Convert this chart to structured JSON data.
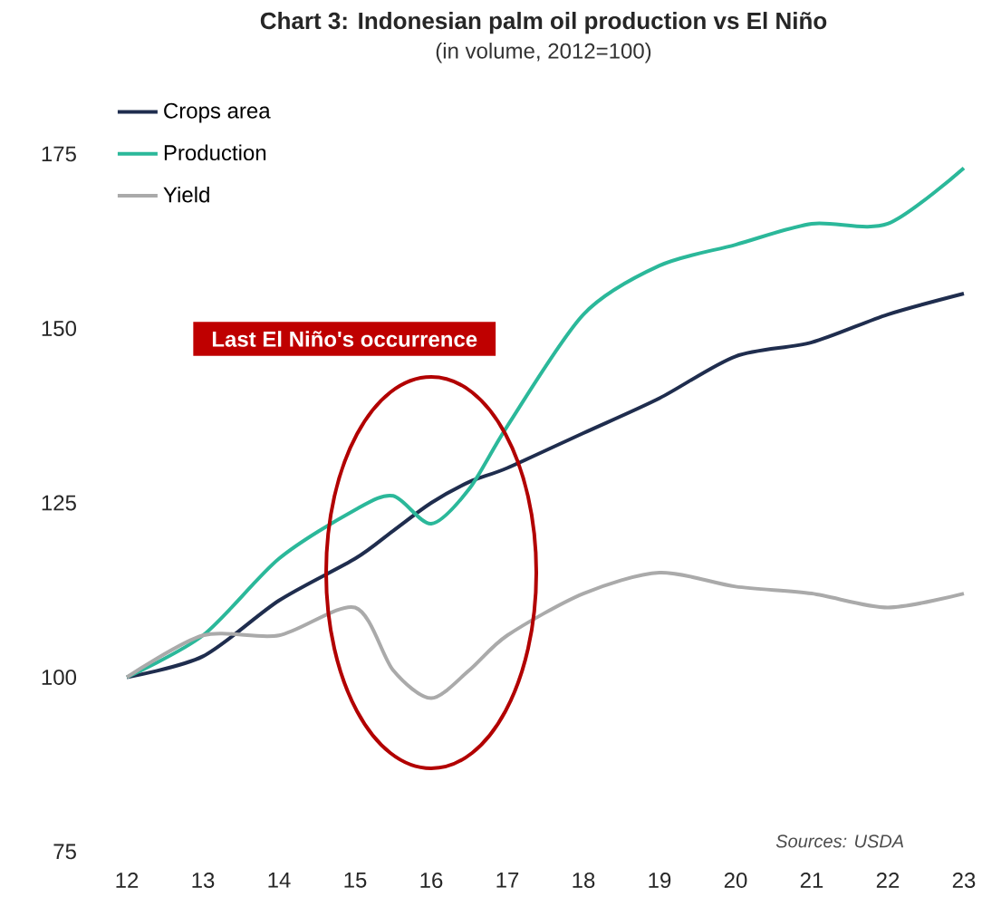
{
  "chart_data": {
    "type": "line",
    "title": "Chart 3: Indonesian palm oil production vs El Niño",
    "subtitle": "(in volume, 2012=100)",
    "x": [
      12,
      13,
      14,
      15,
      15.5,
      16,
      16.5,
      17,
      18,
      19,
      20,
      21,
      22,
      23
    ],
    "series": [
      {
        "name": "Crops area",
        "color": "#1f2d4e",
        "values": [
          100,
          103,
          111,
          117,
          121,
          125,
          128,
          130,
          135,
          140,
          146,
          148,
          152,
          155
        ]
      },
      {
        "name": "Production",
        "color": "#2bb89a",
        "values": [
          100,
          106,
          117,
          124,
          126,
          122,
          127,
          136,
          152,
          159,
          162,
          165,
          165,
          173
        ]
      },
      {
        "name": "Yield",
        "color": "#aaaaaa",
        "values": [
          100,
          106,
          106,
          110,
          101,
          97,
          101,
          106,
          112,
          115,
          113,
          112,
          110,
          112
        ]
      }
    ],
    "xlim": [
      12,
      23
    ],
    "ylim": [
      75,
      175
    ],
    "xticks": [
      12,
      13,
      14,
      15,
      16,
      17,
      18,
      19,
      20,
      21,
      22,
      23
    ],
    "yticks": [
      75,
      100,
      125,
      150,
      175
    ],
    "grid": false,
    "legend": "top left",
    "marker": "none",
    "line_style": "solid",
    "annotations": [
      "Last El Niño's occurrence",
      "Sources: USDA"
    ]
  }
}
